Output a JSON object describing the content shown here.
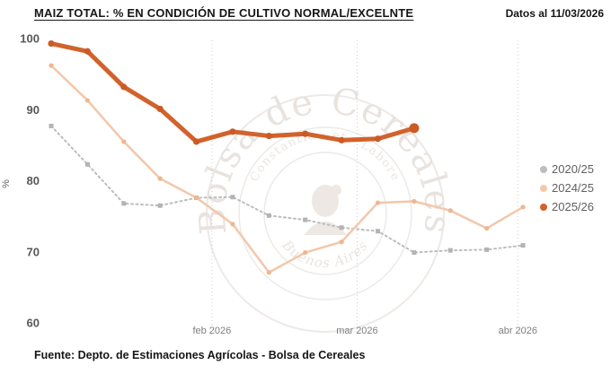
{
  "header": {
    "title": "MAIZ TOTAL: % EN CONDICIÓN DE CULTIVO NORMAL/EXCELNTE",
    "date_note": "Datos al 11/03/2026"
  },
  "footer": {
    "source": "Fuente: Depto. de Estimaciones Agrícolas - Bolsa de Cereales"
  },
  "watermark": {
    "org": "Bolsa de Cereales",
    "motto": "Constantia · et · Labore",
    "city": "Buenos Aires"
  },
  "chart_data": {
    "type": "line",
    "title": "MAIZ TOTAL: % EN CONDICIÓN DE CULTIVO NORMAL/EXCELNTE",
    "xlabel": "",
    "ylabel": "%",
    "ylim": [
      60,
      100
    ],
    "yticks": [
      60,
      70,
      80,
      90,
      100
    ],
    "xticks": [
      {
        "label": "feb 2026",
        "day": 31
      },
      {
        "label": "mar 2026",
        "day": 59
      },
      {
        "label": "abr 2026",
        "day": 90
      }
    ],
    "grid": "vertical-dotted",
    "legend_position": "right",
    "series": [
      {
        "name": "2020/25",
        "color": "#bdbdbd",
        "marker_color": "#b3b3b3",
        "line_style": "dotted",
        "line_width": 2,
        "marker": "square",
        "x_days": [
          0,
          7,
          14,
          21,
          28,
          35,
          42,
          49,
          56,
          63,
          70,
          77,
          84,
          91
        ],
        "values": [
          87.7,
          82.3,
          76.8,
          76.5,
          77.6,
          77.7,
          75.1,
          74.5,
          73.4,
          72.9,
          69.9,
          70.2,
          70.3,
          70.9
        ]
      },
      {
        "name": "2024/25",
        "color": "#f3c7aa",
        "marker_color": "#ecb791",
        "line_style": "solid",
        "line_width": 2.5,
        "marker": "circle",
        "x_days": [
          0,
          7,
          14,
          21,
          28,
          35,
          42,
          49,
          56,
          63,
          70,
          77,
          84,
          91
        ],
        "values": [
          96.2,
          91.3,
          85.5,
          80.3,
          77.6,
          73.9,
          67.1,
          69.9,
          71.4,
          76.9,
          77.1,
          75.8,
          73.3,
          76.3
        ]
      },
      {
        "name": "2025/26",
        "color": "#d2622c",
        "marker_color": "#cb5a25",
        "line_style": "solid",
        "line_width": 5,
        "marker": "circle",
        "emphasize_last": true,
        "x_days": [
          0,
          7,
          14,
          21,
          28,
          35,
          42,
          49,
          56,
          63,
          70
        ],
        "values": [
          99.3,
          98.2,
          93.2,
          90.1,
          85.5,
          86.9,
          86.3,
          86.6,
          85.7,
          85.9,
          87.4
        ]
      }
    ]
  }
}
